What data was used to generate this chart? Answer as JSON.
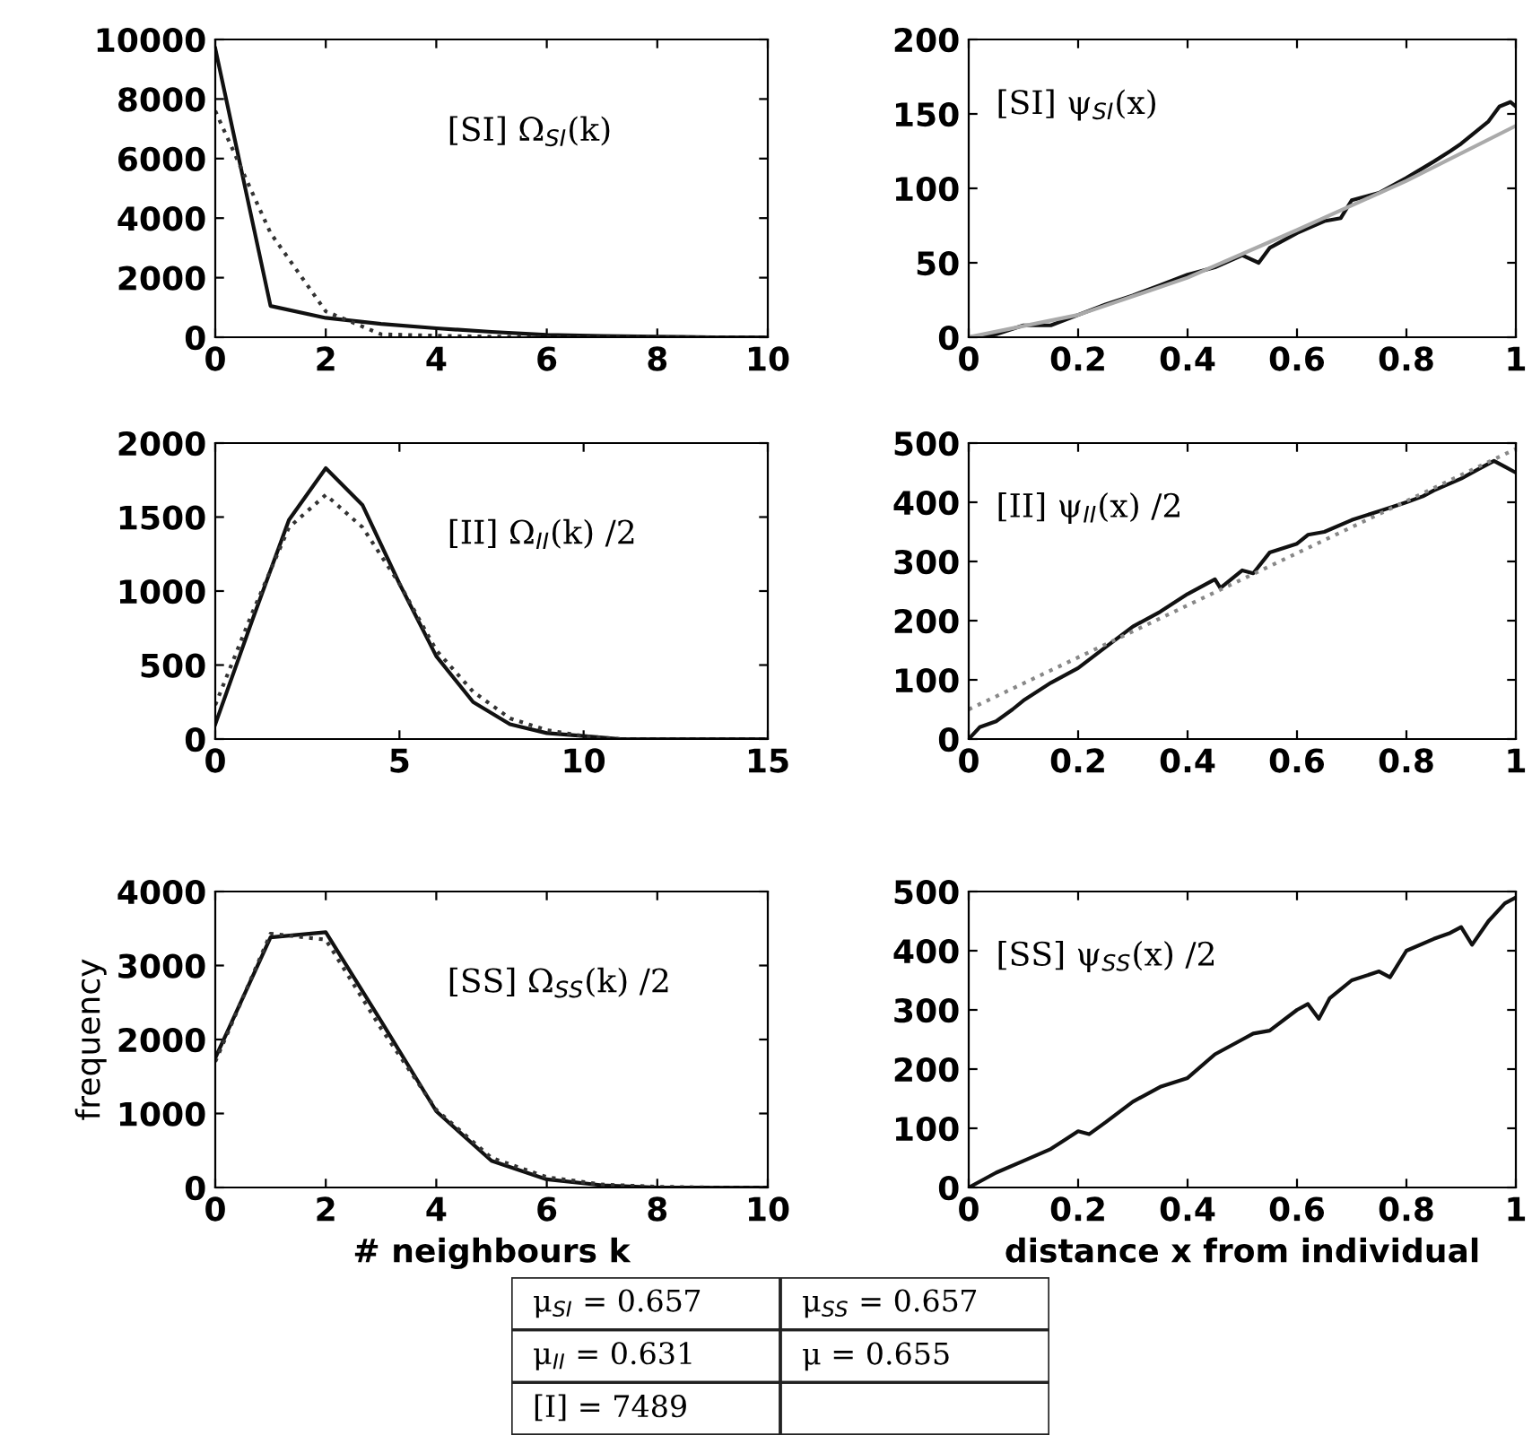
{
  "chart_data": [
    {
      "type": "line",
      "annotations": [
        "[SI] Ω$_{SI}$(k)"
      ],
      "x": [
        0,
        1,
        2,
        3,
        4,
        5,
        6,
        7,
        8,
        9,
        10
      ],
      "xlim": [
        0,
        10
      ],
      "xticks": [
        0,
        2,
        4,
        6,
        8,
        10
      ],
      "ylim": [
        0,
        10000
      ],
      "yticks": [
        0,
        2000,
        4000,
        6000,
        8000,
        10000
      ],
      "series": [
        {
          "color": "#111111",
          "line_style": "solid",
          "values": [
            9700,
            1050,
            650,
            450,
            300,
            180,
            80,
            40,
            20,
            0,
            0
          ]
        },
        {
          "color": "#333333",
          "line_style": "dotted",
          "values": [
            7600,
            3500,
            870,
            100,
            50,
            20,
            0,
            0,
            0,
            0,
            0
          ]
        }
      ]
    },
    {
      "type": "line",
      "annotations": [
        "[SI] ψ$_{SI}$(x)"
      ],
      "xlim": [
        0,
        1
      ],
      "xticks": [
        0,
        0.2,
        0.4,
        0.6,
        0.8,
        1
      ],
      "ylim": [
        0,
        200
      ],
      "yticks": [
        0,
        50,
        100,
        150,
        200
      ],
      "series": [
        {
          "color": "#111111",
          "line_style": "solid",
          "x": [
            0,
            0.05,
            0.1,
            0.15,
            0.2,
            0.25,
            0.3,
            0.35,
            0.4,
            0.45,
            0.5,
            0.53,
            0.55,
            0.6,
            0.65,
            0.68,
            0.7,
            0.75,
            0.8,
            0.85,
            0.88,
            0.9,
            0.95,
            0.97,
            0.99,
            1
          ],
          "values": [
            0,
            2,
            8,
            8,
            15,
            22,
            28,
            35,
            42,
            47,
            55,
            50,
            60,
            70,
            78,
            80,
            92,
            97,
            107,
            118,
            125,
            130,
            145,
            155,
            158,
            155
          ]
        },
        {
          "color": "#aaaaaa",
          "line_style": "solid",
          "x": [
            0,
            0.2,
            0.4,
            0.6,
            0.8,
            1
          ],
          "values": [
            0,
            15,
            40,
            72,
            105,
            142
          ]
        }
      ]
    },
    {
      "type": "line",
      "annotations": [
        "[II] Ω$_{II}$(k) /2"
      ],
      "x": [
        0,
        1,
        2,
        3,
        4,
        5,
        6,
        7,
        8,
        9,
        10,
        11,
        12,
        13,
        14,
        15
      ],
      "xlim": [
        0,
        15
      ],
      "xticks": [
        0,
        5,
        10,
        15
      ],
      "ylim": [
        0,
        2000
      ],
      "yticks": [
        0,
        500,
        1000,
        1500,
        2000
      ],
      "series": [
        {
          "color": "#111111",
          "line_style": "solid",
          "values": [
            100,
            800,
            1480,
            1830,
            1580,
            1050,
            560,
            250,
            100,
            40,
            20,
            0,
            0,
            0,
            0,
            0
          ]
        },
        {
          "color": "#333333",
          "line_style": "dotted",
          "values": [
            230,
            850,
            1430,
            1650,
            1430,
            1050,
            600,
            320,
            140,
            60,
            20,
            0,
            0,
            0,
            0,
            0
          ]
        }
      ]
    },
    {
      "type": "line",
      "annotations": [
        "[II] ψ$_{II}$(x) /2"
      ],
      "xlim": [
        0,
        1
      ],
      "xticks": [
        0,
        0.2,
        0.4,
        0.6,
        0.8,
        1
      ],
      "ylim": [
        0,
        500
      ],
      "yticks": [
        0,
        100,
        200,
        300,
        400,
        500
      ],
      "series": [
        {
          "color": "#111111",
          "line_style": "solid",
          "x": [
            0,
            0.02,
            0.05,
            0.08,
            0.1,
            0.15,
            0.2,
            0.25,
            0.3,
            0.35,
            0.4,
            0.45,
            0.46,
            0.5,
            0.52,
            0.55,
            0.6,
            0.62,
            0.65,
            0.7,
            0.75,
            0.8,
            0.83,
            0.85,
            0.9,
            0.93,
            0.96,
            0.98,
            1
          ],
          "values": [
            0,
            20,
            30,
            50,
            65,
            95,
            120,
            155,
            190,
            215,
            245,
            270,
            255,
            285,
            280,
            315,
            330,
            345,
            350,
            370,
            385,
            400,
            410,
            420,
            440,
            455,
            470,
            460,
            450
          ]
        },
        {
          "color": "#888888",
          "line_style": "dotted",
          "x": [
            0,
            1
          ],
          "values": [
            50,
            490
          ]
        }
      ]
    },
    {
      "type": "line",
      "annotations": [
        "[SS] Ω$_{SS}$(k) /2"
      ],
      "xlabel": "# neighbours k",
      "ylabel": "frequency",
      "x": [
        0,
        1,
        2,
        3,
        4,
        5,
        6,
        7,
        8,
        9,
        10
      ],
      "xlim": [
        0,
        10
      ],
      "xticks": [
        0,
        2,
        4,
        6,
        8,
        10
      ],
      "ylim": [
        0,
        4000
      ],
      "yticks": [
        0,
        1000,
        2000,
        3000,
        4000
      ],
      "series": [
        {
          "color": "#111111",
          "line_style": "solid",
          "values": [
            1750,
            3380,
            3450,
            2250,
            1030,
            360,
            110,
            30,
            0,
            0,
            0
          ]
        },
        {
          "color": "#333333",
          "line_style": "dotted",
          "values": [
            1700,
            3430,
            3350,
            2150,
            1050,
            400,
            140,
            40,
            10,
            0,
            0
          ]
        }
      ]
    },
    {
      "type": "line",
      "annotations": [
        "[SS] ψ$_{SS}$(x) /2"
      ],
      "xlabel": "distance x from individual",
      "xlim": [
        0,
        1
      ],
      "xticks": [
        0,
        0.2,
        0.4,
        0.6,
        0.8,
        1
      ],
      "ylim": [
        0,
        500
      ],
      "yticks": [
        0,
        100,
        200,
        300,
        400,
        500
      ],
      "series": [
        {
          "color": "#111111",
          "line_style": "solid",
          "x": [
            0,
            0.05,
            0.1,
            0.15,
            0.2,
            0.22,
            0.25,
            0.3,
            0.35,
            0.4,
            0.45,
            0.5,
            0.52,
            0.55,
            0.6,
            0.62,
            0.64,
            0.66,
            0.7,
            0.75,
            0.77,
            0.8,
            0.85,
            0.88,
            0.9,
            0.92,
            0.95,
            0.98,
            1
          ],
          "values": [
            0,
            25,
            45,
            65,
            95,
            90,
            110,
            145,
            170,
            185,
            225,
            250,
            260,
            265,
            300,
            310,
            285,
            320,
            350,
            365,
            355,
            400,
            420,
            430,
            440,
            410,
            450,
            480,
            490
          ]
        }
      ]
    },
    {
      "type": "other",
      "annotations": [
        "μ$_{SI}$ = 0.657",
        "μ$_{SS}$ = 0.657",
        "μ$_{II}$ = 0.631",
        "μ = 0.655",
        "[I] = 7489"
      ]
    }
  ]
}
